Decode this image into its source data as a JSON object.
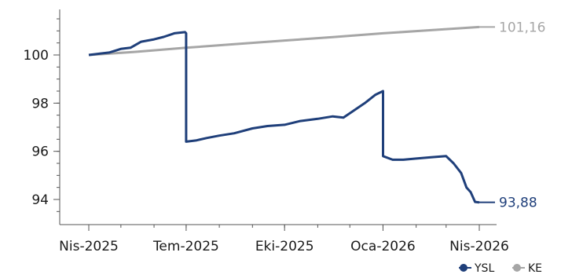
{
  "chart_data": {
    "type": "line",
    "title": "",
    "xlabel": "",
    "ylabel": "",
    "ylim": [
      93,
      102
    ],
    "grid": false,
    "legend_position": "bottom-right",
    "x_ticks": [
      "Nis-2025",
      "Tem-2025",
      "Eki-2025",
      "Oca-2026",
      "Nis-2026"
    ],
    "y_ticks": [
      94,
      96,
      98,
      100
    ],
    "series": [
      {
        "name": "YSL",
        "color": "#1f3f7a",
        "end_label": "93,88",
        "points": [
          [
            "2025-04-01",
            100.0
          ],
          [
            "2025-04-10",
            100.05
          ],
          [
            "2025-04-20",
            100.1
          ],
          [
            "2025-05-01",
            100.25
          ],
          [
            "2025-05-10",
            100.3
          ],
          [
            "2025-05-20",
            100.55
          ],
          [
            "2025-06-01",
            100.65
          ],
          [
            "2025-06-10",
            100.75
          ],
          [
            "2025-06-20",
            100.9
          ],
          [
            "2025-06-30",
            100.95
          ],
          [
            "2025-07-01",
            100.9
          ],
          [
            "2025-07-01",
            96.4
          ],
          [
            "2025-07-10",
            96.45
          ],
          [
            "2025-07-20",
            96.55
          ],
          [
            "2025-08-01",
            96.65
          ],
          [
            "2025-08-15",
            96.75
          ],
          [
            "2025-09-01",
            96.95
          ],
          [
            "2025-09-15",
            97.05
          ],
          [
            "2025-10-01",
            97.1
          ],
          [
            "2025-10-15",
            97.25
          ],
          [
            "2025-11-01",
            97.35
          ],
          [
            "2025-11-15",
            97.45
          ],
          [
            "2025-11-25",
            97.4
          ],
          [
            "2025-12-05",
            97.7
          ],
          [
            "2025-12-15",
            98.0
          ],
          [
            "2025-12-25",
            98.35
          ],
          [
            "2026-01-01",
            98.5
          ],
          [
            "2026-01-01",
            95.8
          ],
          [
            "2026-01-10",
            95.65
          ],
          [
            "2026-01-20",
            95.65
          ],
          [
            "2026-02-01",
            95.7
          ],
          [
            "2026-02-15",
            95.75
          ],
          [
            "2026-03-01",
            95.8
          ],
          [
            "2026-03-08",
            95.5
          ],
          [
            "2026-03-15",
            95.1
          ],
          [
            "2026-03-20",
            94.5
          ],
          [
            "2026-03-24",
            94.3
          ],
          [
            "2026-03-28",
            93.9
          ],
          [
            "2026-04-01",
            93.88
          ]
        ]
      },
      {
        "name": "KE",
        "color": "#a6a6a6",
        "end_label": "101,16",
        "points": [
          [
            "2025-04-01",
            100.0
          ],
          [
            "2025-05-15",
            100.13
          ],
          [
            "2025-07-01",
            100.3
          ],
          [
            "2025-08-15",
            100.45
          ],
          [
            "2025-10-01",
            100.6
          ],
          [
            "2025-11-15",
            100.74
          ],
          [
            "2026-01-01",
            100.9
          ],
          [
            "2026-02-15",
            101.03
          ],
          [
            "2026-04-01",
            101.16
          ]
        ]
      }
    ]
  }
}
